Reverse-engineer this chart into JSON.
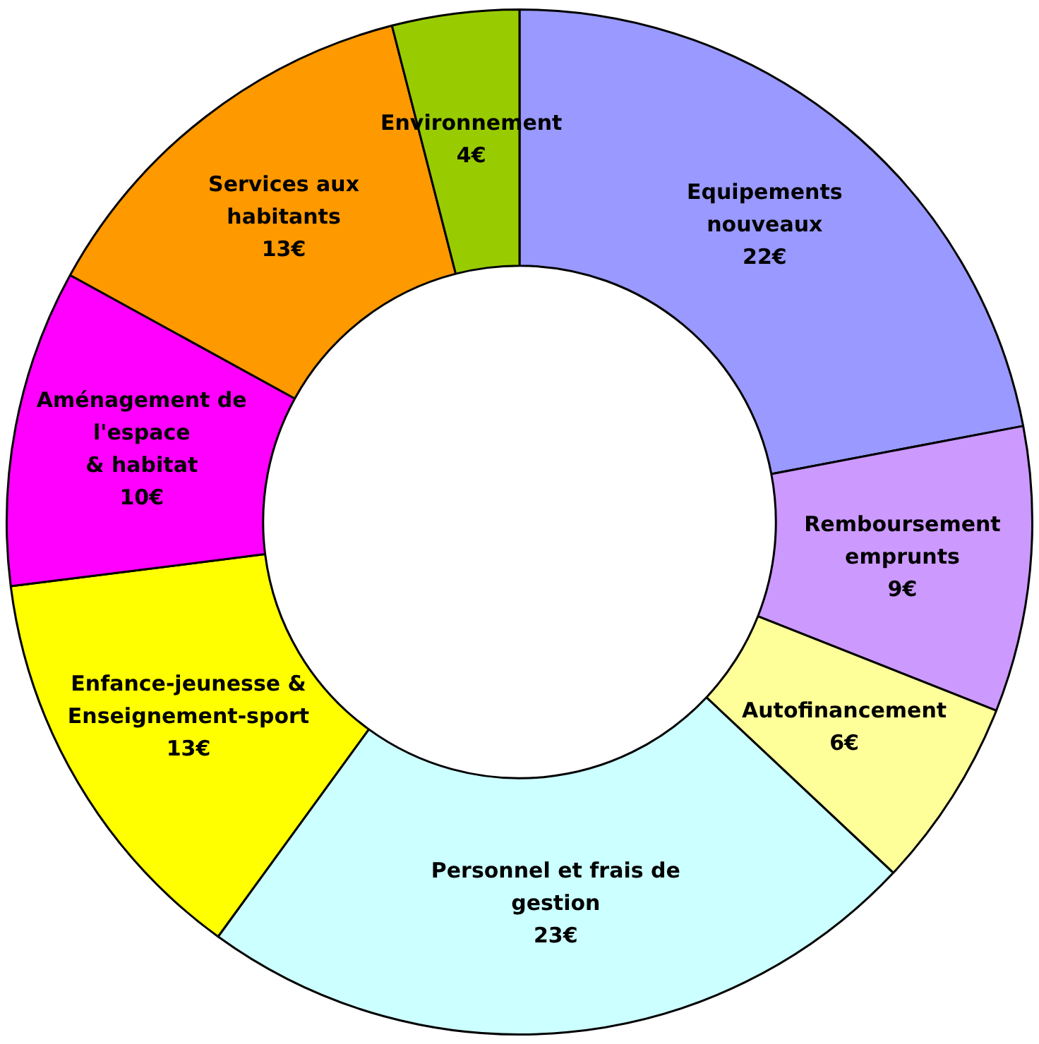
{
  "chart_data": {
    "type": "donut",
    "categories": [
      "Equipements\nnouveaux",
      "Remboursement\nemprunts",
      "Autofinancement",
      "Personnel et frais de\ngestion",
      "Enfance-jeunesse &\nEnseignement-sport",
      "Aménagement de\nl'espace\n& habitat",
      "Services aux\nhabitants",
      "Environnement"
    ],
    "values": [
      22,
      9,
      6,
      23,
      13,
      10,
      13,
      4
    ],
    "colors": [
      "#9999ff",
      "#cc99ff",
      "#ffff99",
      "#ccffff",
      "#ffff00",
      "#ff00ff",
      "#ff9900",
      "#99cc00"
    ],
    "value_labels": [
      "22€",
      "9€",
      "6€",
      "23€",
      "13€",
      "10€",
      "13€",
      "4€"
    ]
  }
}
